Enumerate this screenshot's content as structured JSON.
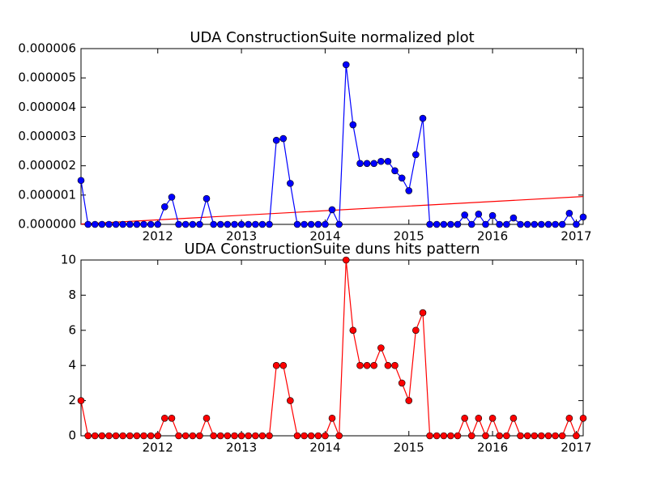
{
  "chart_data": [
    {
      "type": "line",
      "title": "UDA ConstructionSuite normalized plot",
      "color": "#0000ff",
      "x": [
        2011.083,
        2011.167,
        2011.25,
        2011.333,
        2011.417,
        2011.5,
        2011.583,
        2011.667,
        2011.75,
        2011.833,
        2011.917,
        2012,
        2012.083,
        2012.167,
        2012.25,
        2012.333,
        2012.417,
        2012.5,
        2012.583,
        2012.667,
        2012.75,
        2012.833,
        2012.917,
        2013,
        2013.083,
        2013.167,
        2013.25,
        2013.333,
        2013.417,
        2013.5,
        2013.583,
        2013.667,
        2013.75,
        2013.833,
        2013.917,
        2014,
        2014.083,
        2014.167,
        2014.25,
        2014.333,
        2014.417,
        2014.5,
        2014.583,
        2014.667,
        2014.75,
        2014.833,
        2014.917,
        2015,
        2015.083,
        2015.167,
        2015.25,
        2015.333,
        2015.417,
        2015.5,
        2015.583,
        2015.667,
        2015.75,
        2015.833,
        2015.917,
        2016,
        2016.083,
        2016.167,
        2016.25,
        2016.333,
        2016.417,
        2016.5,
        2016.583,
        2016.667,
        2016.75,
        2016.833,
        2016.917,
        2017,
        2017.083
      ],
      "values": [
        1.5e-06,
        0,
        0,
        0,
        0,
        0,
        0,
        0,
        0,
        0,
        0,
        0,
        6e-07,
        9.3e-07,
        0,
        0,
        0,
        0,
        8.8e-07,
        0,
        0,
        0,
        0,
        0,
        0,
        0,
        0,
        0,
        2.87e-06,
        2.93e-06,
        1.4e-06,
        0,
        0,
        0,
        0,
        0,
        5e-07,
        0,
        5.45e-06,
        3.4e-06,
        2.08e-06,
        2.08e-06,
        2.08e-06,
        2.15e-06,
        2.15e-06,
        1.83e-06,
        1.58e-06,
        1.15e-06,
        2.38e-06,
        3.62e-06,
        0,
        0,
        0,
        0,
        0,
        3.2e-07,
        0,
        3.5e-07,
        0,
        3e-07,
        0,
        0,
        2.2e-07,
        0,
        0,
        0,
        0,
        0,
        0,
        0,
        3.8e-07,
        0,
        2.5e-07
      ],
      "trend": {
        "color": "#ff0000",
        "x": [
          2011.083,
          2017.083
        ],
        "values": [
          1e-08,
          9.5e-07
        ]
      },
      "xlim": [
        2011.083,
        2017.083
      ],
      "xticks": [
        2012,
        2013,
        2014,
        2015,
        2016,
        2017
      ],
      "ylim": [
        0,
        6e-06
      ],
      "yticks": [
        {
          "value": 0,
          "label": "0.000000"
        },
        {
          "value": 1e-06,
          "label": "0.000001"
        },
        {
          "value": 2e-06,
          "label": "0.000002"
        },
        {
          "value": 3e-06,
          "label": "0.000003"
        },
        {
          "value": 4e-06,
          "label": "0.000004"
        },
        {
          "value": 5e-06,
          "label": "0.000005"
        },
        {
          "value": 6e-06,
          "label": "0.000006"
        }
      ]
    },
    {
      "type": "line",
      "title": "UDA ConstructionSuite duns hits pattern",
      "color": "#ff0000",
      "x": [
        2011.083,
        2011.167,
        2011.25,
        2011.333,
        2011.417,
        2011.5,
        2011.583,
        2011.667,
        2011.75,
        2011.833,
        2011.917,
        2012,
        2012.083,
        2012.167,
        2012.25,
        2012.333,
        2012.417,
        2012.5,
        2012.583,
        2012.667,
        2012.75,
        2012.833,
        2012.917,
        2013,
        2013.083,
        2013.167,
        2013.25,
        2013.333,
        2013.417,
        2013.5,
        2013.583,
        2013.667,
        2013.75,
        2013.833,
        2013.917,
        2014,
        2014.083,
        2014.167,
        2014.25,
        2014.333,
        2014.417,
        2014.5,
        2014.583,
        2014.667,
        2014.75,
        2014.833,
        2014.917,
        2015,
        2015.083,
        2015.167,
        2015.25,
        2015.333,
        2015.417,
        2015.5,
        2015.583,
        2015.667,
        2015.75,
        2015.833,
        2015.917,
        2016,
        2016.083,
        2016.167,
        2016.25,
        2016.333,
        2016.417,
        2016.5,
        2016.583,
        2016.667,
        2016.75,
        2016.833,
        2016.917,
        2017,
        2017.083
      ],
      "values": [
        2,
        0,
        0,
        0,
        0,
        0,
        0,
        0,
        0,
        0,
        0,
        0,
        1,
        1,
        0,
        0,
        0,
        0,
        1,
        0,
        0,
        0,
        0,
        0,
        0,
        0,
        0,
        0,
        4,
        4,
        2,
        0,
        0,
        0,
        0,
        0,
        1,
        0,
        10,
        6,
        4,
        4,
        4,
        5,
        4,
        4,
        3,
        2,
        6,
        7,
        0,
        0,
        0,
        0,
        0,
        1,
        0,
        1,
        0,
        1,
        0,
        0,
        1,
        0,
        0,
        0,
        0,
        0,
        0,
        0,
        1,
        0,
        1
      ],
      "xlim": [
        2011.083,
        2017.083
      ],
      "xticks": [
        2012,
        2013,
        2014,
        2015,
        2016,
        2017
      ],
      "ylim": [
        0,
        10
      ],
      "yticks": [
        0,
        2,
        4,
        6,
        8,
        10
      ]
    }
  ]
}
